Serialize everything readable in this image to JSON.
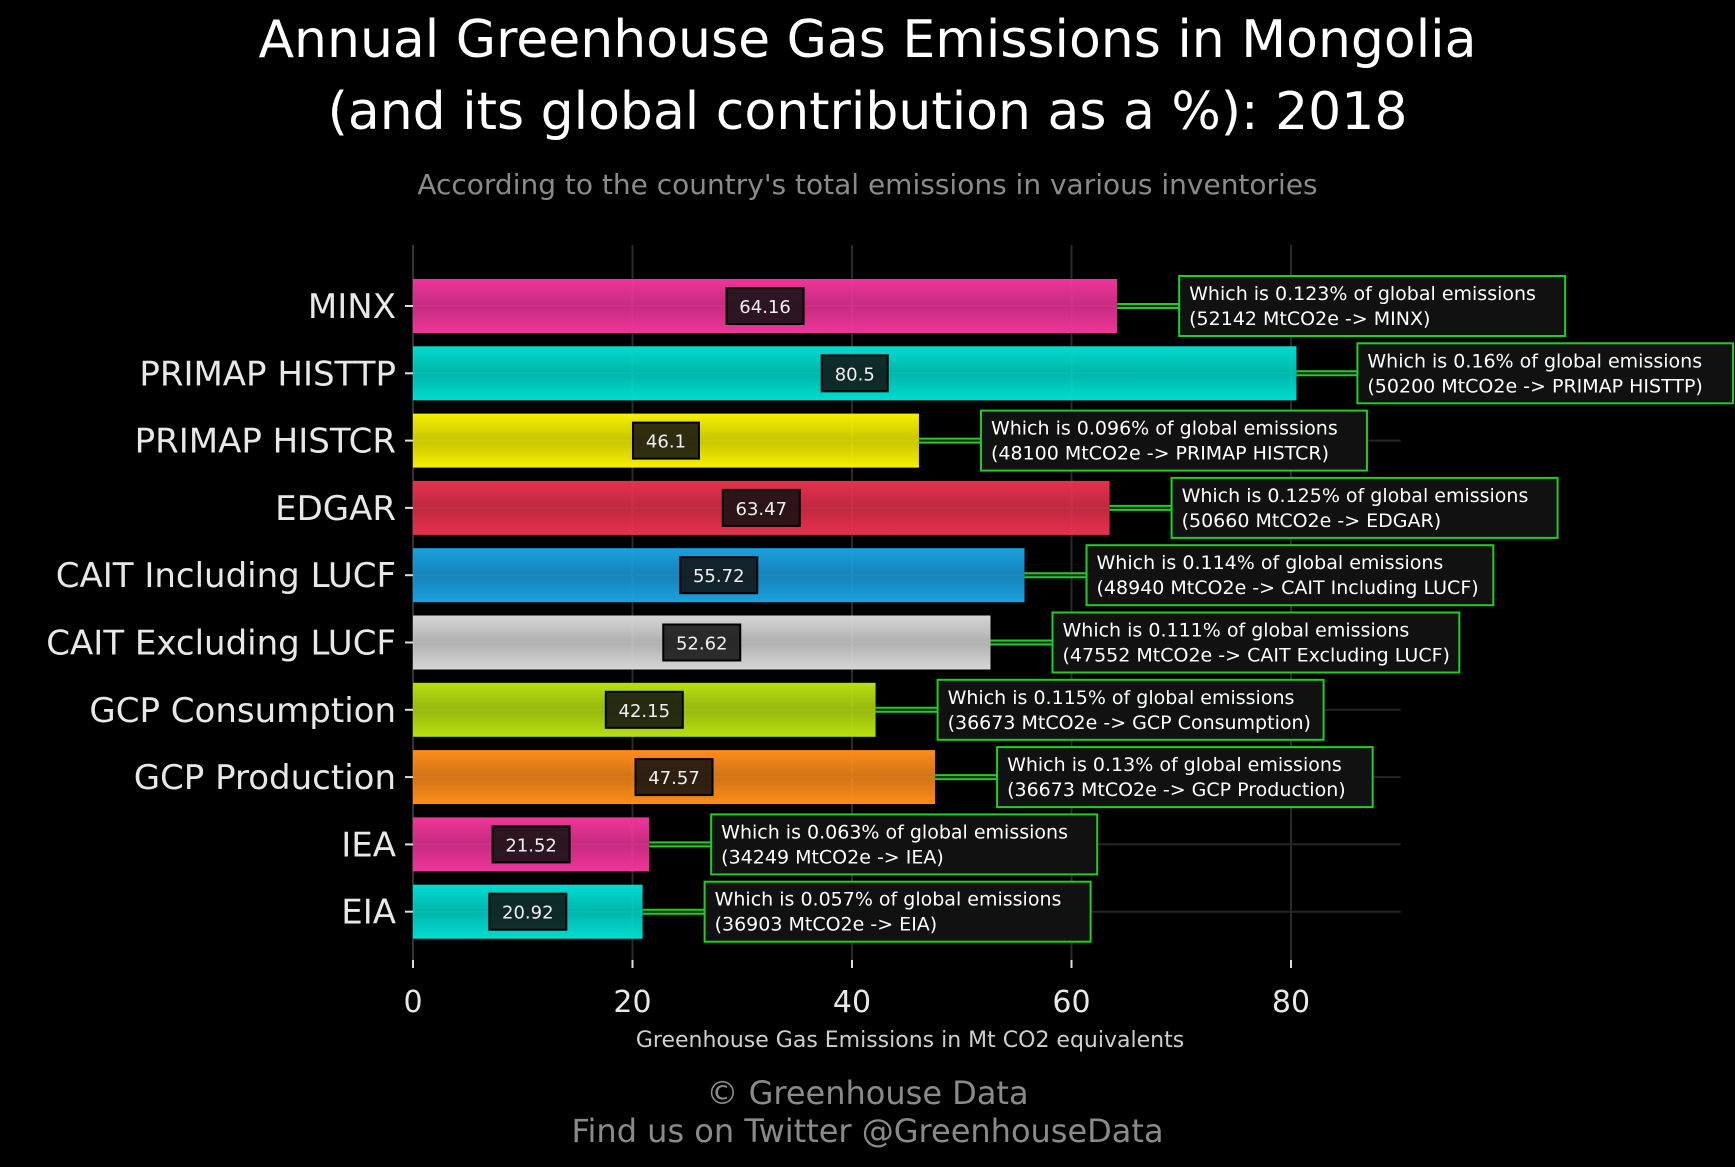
{
  "header": {
    "title_line1": "Annual Greenhouse Gas Emissions in Mongolia",
    "title_line2": "(and its global contribution as a %): 2018",
    "subtitle": "According to the country's total emissions in various inventories"
  },
  "footer": {
    "line1": "© Greenhouse Data",
    "line2": "Find us on Twitter @GreenhouseData"
  },
  "chart_data": {
    "type": "bar",
    "orientation": "horizontal",
    "xlabel": "Greenhouse Gas Emissions in Mt CO2 equivalents",
    "xlim": [
      0,
      90
    ],
    "xticks": [
      0,
      20,
      40,
      60,
      80
    ],
    "grid": true,
    "categories": [
      "MINX",
      "PRIMAP HISTTP",
      "PRIMAP HISTCR",
      "EDGAR",
      "CAIT Including LUCF",
      "CAIT Excluding LUCF",
      "GCP Consumption",
      "GCP Production",
      "IEA",
      "EIA"
    ],
    "values": [
      64.16,
      80.5,
      46.1,
      63.47,
      55.72,
      52.62,
      42.15,
      47.57,
      21.52,
      20.92
    ],
    "value_labels": [
      "64.16",
      "80.5",
      "46.1",
      "63.47",
      "55.72",
      "52.62",
      "42.15",
      "47.57",
      "21.52",
      "20.92"
    ],
    "colors": [
      "#f0359a",
      "#00ddd0",
      "#f5f000",
      "#e8304f",
      "#1aa0e0",
      "#d6d6d6",
      "#b8e010",
      "#ff8c1a",
      "#f0359a",
      "#00ddd0"
    ],
    "annotations": [
      {
        "line1": "Which is 0.123% of global emissions",
        "line2": "(52142 MtCO2e -> MINX)"
      },
      {
        "line1": "Which is 0.16% of global emissions",
        "line2": "(50200 MtCO2e -> PRIMAP HISTTP)"
      },
      {
        "line1": "Which is 0.096% of global emissions",
        "line2": "(48100 MtCO2e -> PRIMAP HISTCR)"
      },
      {
        "line1": "Which is 0.125% of global emissions",
        "line2": "(50660 MtCO2e -> EDGAR)"
      },
      {
        "line1": "Which is 0.114% of global emissions",
        "line2": "(48940 MtCO2e -> CAIT Including LUCF)"
      },
      {
        "line1": "Which is 0.111% of global emissions",
        "line2": "(47552 MtCO2e -> CAIT Excluding LUCF)"
      },
      {
        "line1": "Which is 0.115% of global emissions",
        "line2": "(36673 MtCO2e -> GCP Consumption)"
      },
      {
        "line1": "Which is 0.13% of global emissions",
        "line2": "(36673 MtCO2e -> GCP Production)"
      },
      {
        "line1": "Which is 0.063% of global emissions",
        "line2": "(34249 MtCO2e -> IEA)"
      },
      {
        "line1": "Which is 0.057% of global emissions",
        "line2": "(36903 MtCO2e -> EIA)"
      }
    ],
    "annotation_color": "#22cc22"
  }
}
